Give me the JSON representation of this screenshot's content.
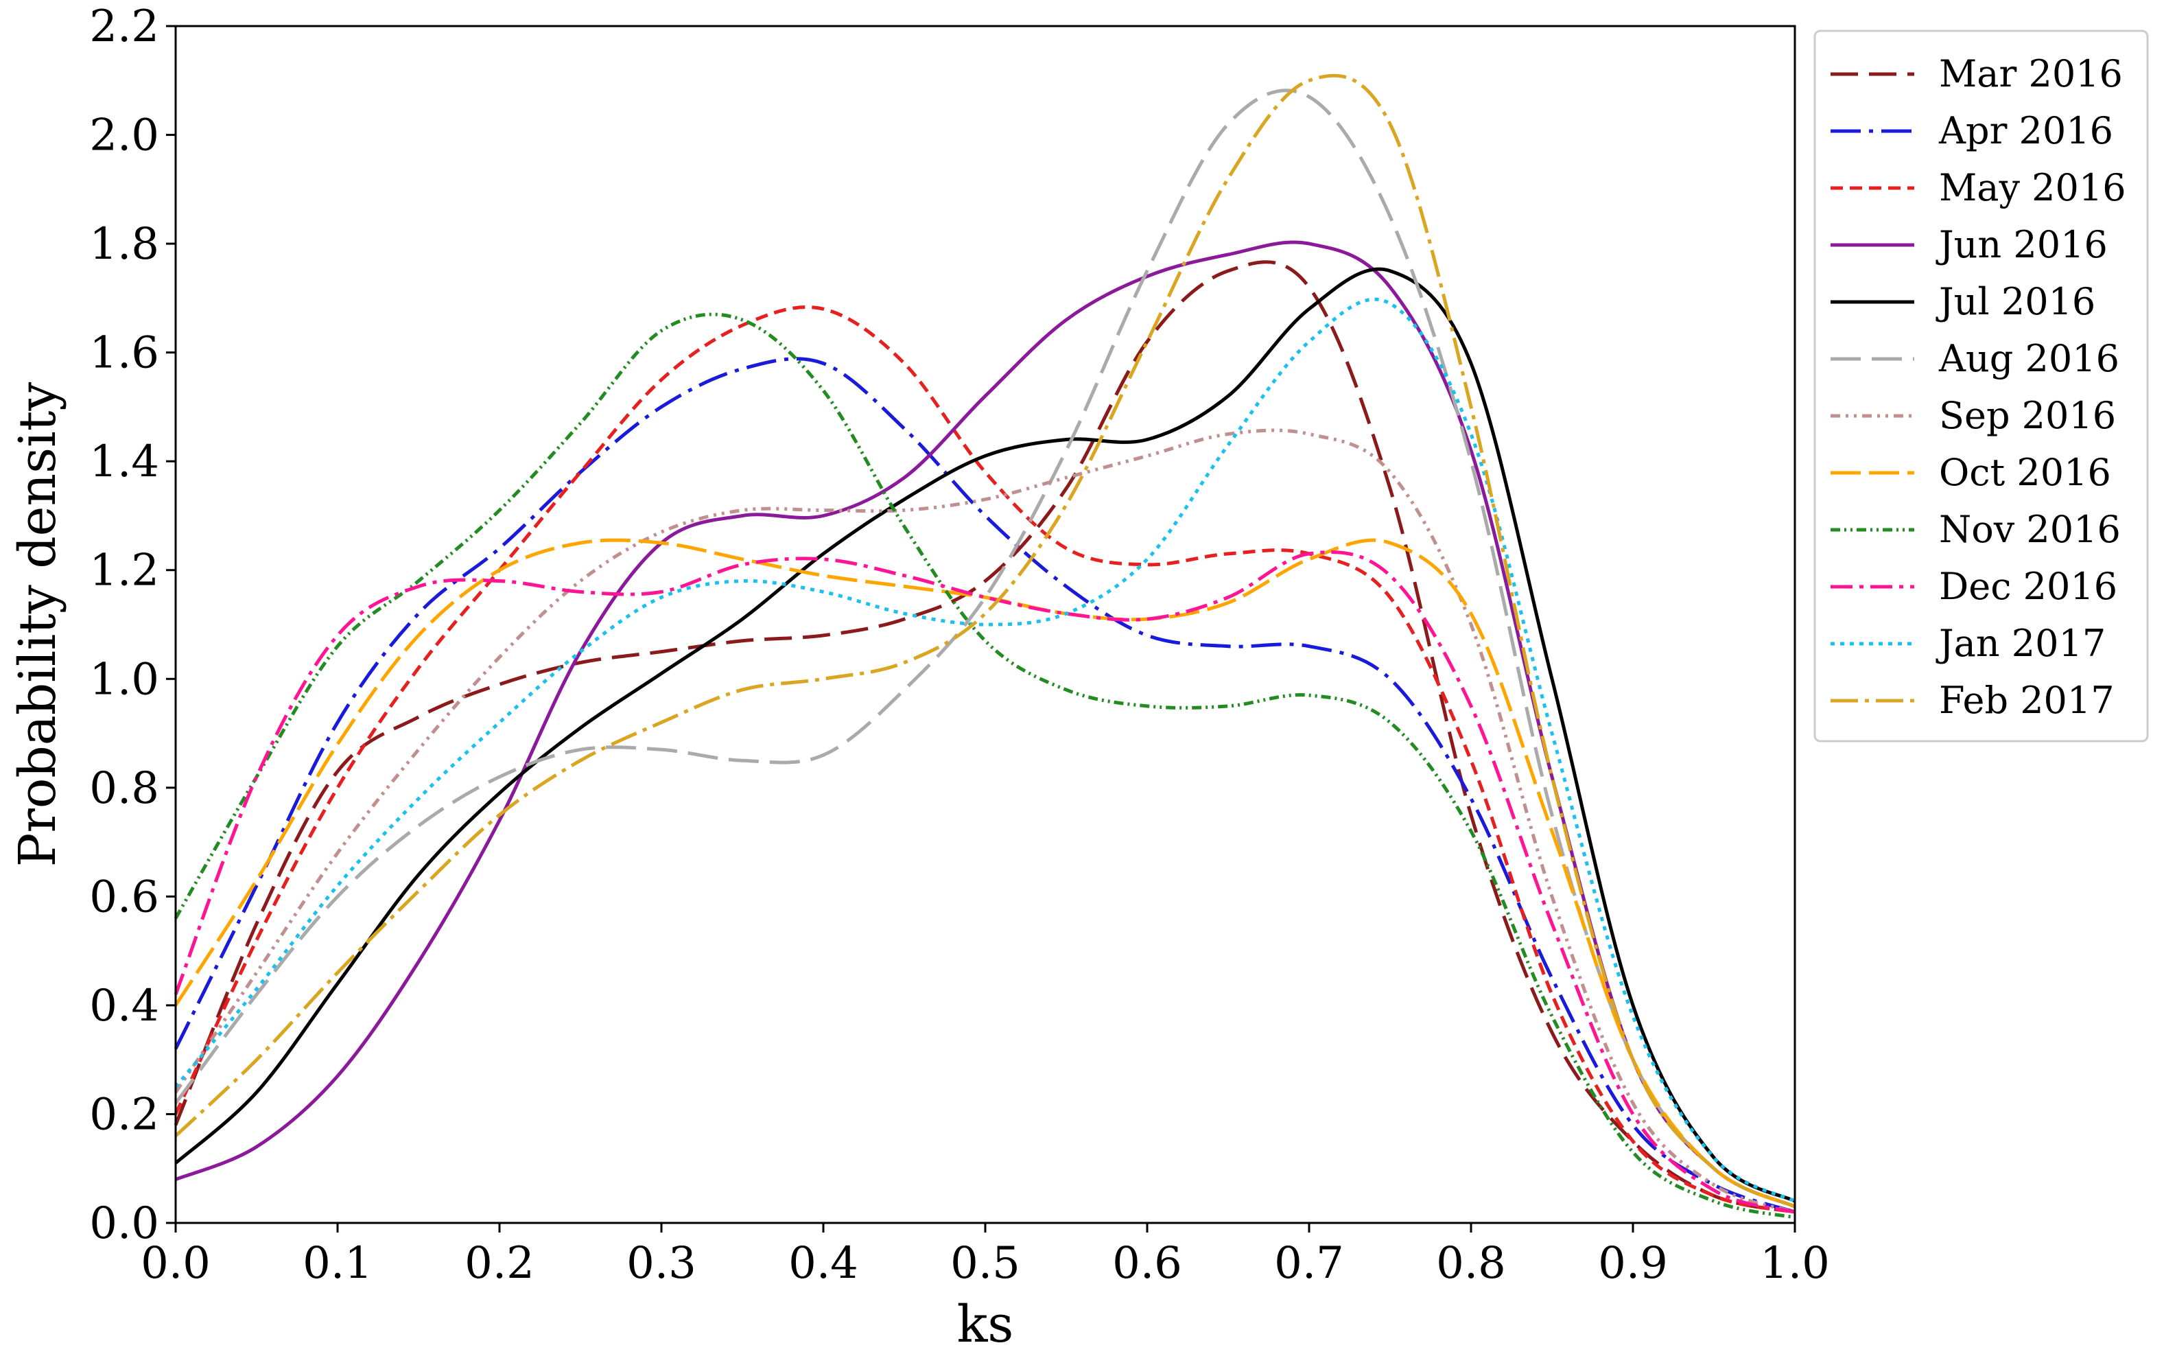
{
  "chart_data": {
    "type": "line",
    "title": "",
    "xlabel": "ks",
    "ylabel": "Probability density",
    "xlim": [
      0.0,
      1.0
    ],
    "ylim": [
      0.0,
      2.2
    ],
    "xticks": [
      "0.0",
      "0.1",
      "0.2",
      "0.3",
      "0.4",
      "0.5",
      "0.6",
      "0.7",
      "0.8",
      "0.9",
      "1.0"
    ],
    "yticks": [
      "0.0",
      "0.2",
      "0.4",
      "0.6",
      "0.8",
      "1.0",
      "1.2",
      "1.4",
      "1.6",
      "1.8",
      "2.0",
      "2.2"
    ],
    "grid": false,
    "legend_position": "outside-right-top",
    "x": [
      0.0,
      0.05,
      0.1,
      0.15,
      0.2,
      0.25,
      0.3,
      0.35,
      0.4,
      0.45,
      0.5,
      0.55,
      0.6,
      0.65,
      0.7,
      0.75,
      0.8,
      0.85,
      0.9,
      0.95,
      1.0
    ],
    "series": [
      {
        "name": "Mar 2016",
        "color": "#8b1a1a",
        "dash": "40 16",
        "values": [
          0.18,
          0.55,
          0.83,
          0.93,
          0.99,
          1.03,
          1.05,
          1.07,
          1.08,
          1.11,
          1.18,
          1.35,
          1.62,
          1.75,
          1.72,
          1.35,
          0.75,
          0.35,
          0.15,
          0.05,
          0.02
        ]
      },
      {
        "name": "Apr 2016",
        "color": "#1a1adb",
        "dash": "44 12 6 12",
        "values": [
          0.32,
          0.62,
          0.92,
          1.12,
          1.24,
          1.38,
          1.5,
          1.57,
          1.58,
          1.46,
          1.3,
          1.17,
          1.08,
          1.06,
          1.06,
          1.0,
          0.78,
          0.45,
          0.18,
          0.07,
          0.02
        ]
      },
      {
        "name": "May 2016",
        "color": "#e61f1f",
        "dash": "18 10",
        "values": [
          0.2,
          0.52,
          0.8,
          1.02,
          1.2,
          1.38,
          1.55,
          1.65,
          1.68,
          1.58,
          1.38,
          1.24,
          1.21,
          1.23,
          1.23,
          1.15,
          0.85,
          0.42,
          0.15,
          0.05,
          0.02
        ]
      },
      {
        "name": "Jun 2016",
        "color": "#8b1a9a",
        "dash": "",
        "values": [
          0.08,
          0.14,
          0.27,
          0.48,
          0.74,
          1.05,
          1.25,
          1.3,
          1.3,
          1.37,
          1.52,
          1.66,
          1.74,
          1.78,
          1.8,
          1.72,
          1.42,
          0.82,
          0.3,
          0.1,
          0.03
        ]
      },
      {
        "name": "Jul 2016",
        "color": "#000000",
        "dash": "",
        "values": [
          0.11,
          0.24,
          0.44,
          0.64,
          0.79,
          0.91,
          1.01,
          1.11,
          1.23,
          1.33,
          1.41,
          1.44,
          1.44,
          1.52,
          1.68,
          1.75,
          1.58,
          1.0,
          0.4,
          0.12,
          0.04
        ]
      },
      {
        "name": "Aug 2016",
        "color": "#aaaaaa",
        "dash": "44 16",
        "values": [
          0.22,
          0.42,
          0.6,
          0.73,
          0.82,
          0.87,
          0.87,
          0.85,
          0.86,
          0.98,
          1.15,
          1.42,
          1.75,
          2.02,
          2.07,
          1.85,
          1.4,
          0.75,
          0.3,
          0.1,
          0.03
        ]
      },
      {
        "name": "Sep 2016",
        "color": "#c08f8f",
        "dash": "14 8 4 8 4 8",
        "values": [
          0.24,
          0.46,
          0.68,
          0.87,
          1.04,
          1.18,
          1.27,
          1.31,
          1.31,
          1.31,
          1.33,
          1.37,
          1.41,
          1.45,
          1.45,
          1.38,
          1.1,
          0.6,
          0.22,
          0.07,
          0.02
        ]
      },
      {
        "name": "Oct 2016",
        "color": "#ffa500",
        "dash": "44 12",
        "values": [
          0.4,
          0.63,
          0.88,
          1.08,
          1.2,
          1.25,
          1.25,
          1.22,
          1.19,
          1.17,
          1.15,
          1.12,
          1.11,
          1.14,
          1.22,
          1.25,
          1.12,
          0.72,
          0.3,
          0.1,
          0.03
        ]
      },
      {
        "name": "Nov 2016",
        "color": "#228b22",
        "dash": "14 6 3 6 3 6",
        "values": [
          0.56,
          0.82,
          1.06,
          1.18,
          1.31,
          1.47,
          1.64,
          1.66,
          1.53,
          1.28,
          1.07,
          0.98,
          0.95,
          0.95,
          0.97,
          0.92,
          0.72,
          0.38,
          0.13,
          0.04,
          0.01
        ]
      },
      {
        "name": "Dec 2016",
        "color": "#ff1493",
        "dash": "32 10 6 10",
        "values": [
          0.42,
          0.82,
          1.08,
          1.17,
          1.18,
          1.16,
          1.16,
          1.21,
          1.22,
          1.19,
          1.15,
          1.12,
          1.11,
          1.15,
          1.23,
          1.19,
          0.95,
          0.55,
          0.2,
          0.06,
          0.02
        ]
      },
      {
        "name": "Jan 2017",
        "color": "#1ac0ee",
        "dash": "6 8",
        "values": [
          0.25,
          0.43,
          0.62,
          0.78,
          0.92,
          1.05,
          1.15,
          1.18,
          1.16,
          1.12,
          1.1,
          1.12,
          1.22,
          1.43,
          1.62,
          1.69,
          1.45,
          0.9,
          0.38,
          0.12,
          0.04
        ]
      },
      {
        "name": "Feb 2017",
        "color": "#daa520",
        "dash": "40 10 6 10",
        "values": [
          0.16,
          0.3,
          0.46,
          0.61,
          0.75,
          0.85,
          0.92,
          0.98,
          1.0,
          1.03,
          1.12,
          1.32,
          1.62,
          1.92,
          2.1,
          2.02,
          1.5,
          0.82,
          0.3,
          0.1,
          0.03
        ]
      }
    ]
  }
}
